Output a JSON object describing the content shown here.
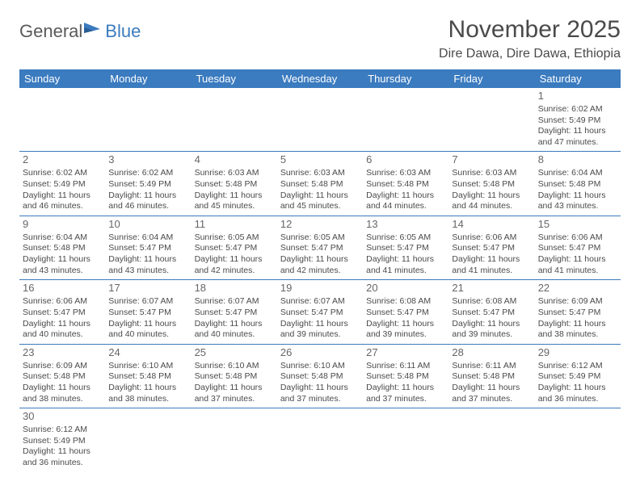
{
  "logo": {
    "part1": "General",
    "part2": "Blue"
  },
  "title": "November 2025",
  "location": "Dire Dawa, Dire Dawa, Ethiopia",
  "colors": {
    "header_bg": "#3b7bbf",
    "header_fg": "#ffffff",
    "text": "#4a4a4a"
  },
  "day_headers": [
    "Sunday",
    "Monday",
    "Tuesday",
    "Wednesday",
    "Thursday",
    "Friday",
    "Saturday"
  ],
  "weeks": [
    [
      null,
      null,
      null,
      null,
      null,
      null,
      {
        "d": "1",
        "sr": "6:02 AM",
        "ss": "5:49 PM",
        "dl": "11 hours and 47 minutes."
      }
    ],
    [
      {
        "d": "2",
        "sr": "6:02 AM",
        "ss": "5:49 PM",
        "dl": "11 hours and 46 minutes."
      },
      {
        "d": "3",
        "sr": "6:02 AM",
        "ss": "5:49 PM",
        "dl": "11 hours and 46 minutes."
      },
      {
        "d": "4",
        "sr": "6:03 AM",
        "ss": "5:48 PM",
        "dl": "11 hours and 45 minutes."
      },
      {
        "d": "5",
        "sr": "6:03 AM",
        "ss": "5:48 PM",
        "dl": "11 hours and 45 minutes."
      },
      {
        "d": "6",
        "sr": "6:03 AM",
        "ss": "5:48 PM",
        "dl": "11 hours and 44 minutes."
      },
      {
        "d": "7",
        "sr": "6:03 AM",
        "ss": "5:48 PM",
        "dl": "11 hours and 44 minutes."
      },
      {
        "d": "8",
        "sr": "6:04 AM",
        "ss": "5:48 PM",
        "dl": "11 hours and 43 minutes."
      }
    ],
    [
      {
        "d": "9",
        "sr": "6:04 AM",
        "ss": "5:48 PM",
        "dl": "11 hours and 43 minutes."
      },
      {
        "d": "10",
        "sr": "6:04 AM",
        "ss": "5:47 PM",
        "dl": "11 hours and 43 minutes."
      },
      {
        "d": "11",
        "sr": "6:05 AM",
        "ss": "5:47 PM",
        "dl": "11 hours and 42 minutes."
      },
      {
        "d": "12",
        "sr": "6:05 AM",
        "ss": "5:47 PM",
        "dl": "11 hours and 42 minutes."
      },
      {
        "d": "13",
        "sr": "6:05 AM",
        "ss": "5:47 PM",
        "dl": "11 hours and 41 minutes."
      },
      {
        "d": "14",
        "sr": "6:06 AM",
        "ss": "5:47 PM",
        "dl": "11 hours and 41 minutes."
      },
      {
        "d": "15",
        "sr": "6:06 AM",
        "ss": "5:47 PM",
        "dl": "11 hours and 41 minutes."
      }
    ],
    [
      {
        "d": "16",
        "sr": "6:06 AM",
        "ss": "5:47 PM",
        "dl": "11 hours and 40 minutes."
      },
      {
        "d": "17",
        "sr": "6:07 AM",
        "ss": "5:47 PM",
        "dl": "11 hours and 40 minutes."
      },
      {
        "d": "18",
        "sr": "6:07 AM",
        "ss": "5:47 PM",
        "dl": "11 hours and 40 minutes."
      },
      {
        "d": "19",
        "sr": "6:07 AM",
        "ss": "5:47 PM",
        "dl": "11 hours and 39 minutes."
      },
      {
        "d": "20",
        "sr": "6:08 AM",
        "ss": "5:47 PM",
        "dl": "11 hours and 39 minutes."
      },
      {
        "d": "21",
        "sr": "6:08 AM",
        "ss": "5:47 PM",
        "dl": "11 hours and 39 minutes."
      },
      {
        "d": "22",
        "sr": "6:09 AM",
        "ss": "5:47 PM",
        "dl": "11 hours and 38 minutes."
      }
    ],
    [
      {
        "d": "23",
        "sr": "6:09 AM",
        "ss": "5:48 PM",
        "dl": "11 hours and 38 minutes."
      },
      {
        "d": "24",
        "sr": "6:10 AM",
        "ss": "5:48 PM",
        "dl": "11 hours and 38 minutes."
      },
      {
        "d": "25",
        "sr": "6:10 AM",
        "ss": "5:48 PM",
        "dl": "11 hours and 37 minutes."
      },
      {
        "d": "26",
        "sr": "6:10 AM",
        "ss": "5:48 PM",
        "dl": "11 hours and 37 minutes."
      },
      {
        "d": "27",
        "sr": "6:11 AM",
        "ss": "5:48 PM",
        "dl": "11 hours and 37 minutes."
      },
      {
        "d": "28",
        "sr": "6:11 AM",
        "ss": "5:48 PM",
        "dl": "11 hours and 37 minutes."
      },
      {
        "d": "29",
        "sr": "6:12 AM",
        "ss": "5:49 PM",
        "dl": "11 hours and 36 minutes."
      }
    ],
    [
      {
        "d": "30",
        "sr": "6:12 AM",
        "ss": "5:49 PM",
        "dl": "11 hours and 36 minutes."
      },
      null,
      null,
      null,
      null,
      null,
      null
    ]
  ],
  "labels": {
    "sunrise": "Sunrise:",
    "sunset": "Sunset:",
    "daylight": "Daylight:"
  }
}
